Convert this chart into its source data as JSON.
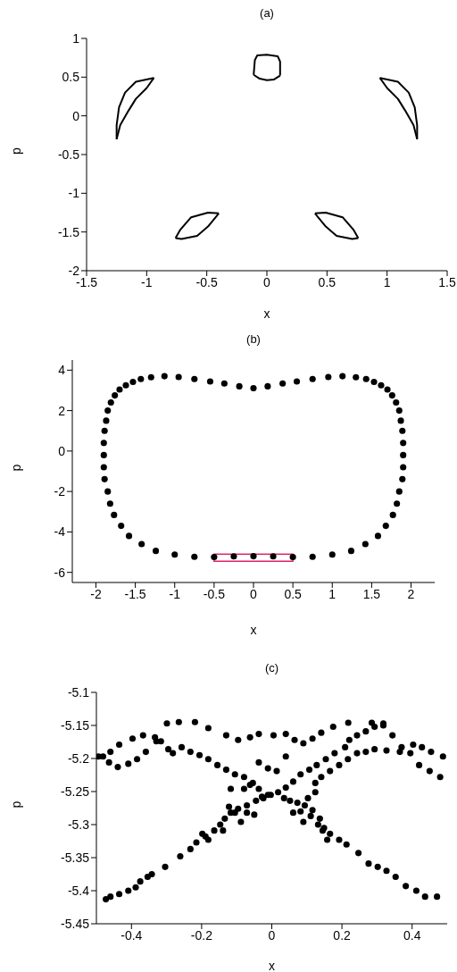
{
  "chart_data": [
    {
      "type": "line",
      "title": "(a)",
      "xlabel": "x",
      "ylabel": "p",
      "xlim": [
        -1.5,
        1.5
      ],
      "ylim": [
        -2,
        1
      ],
      "xticks": [
        -1.5,
        -1,
        -0.5,
        0,
        0.5,
        1,
        1.5
      ],
      "yticks": [
        -2,
        -1.5,
        -1,
        -0.5,
        0,
        0.5,
        1
      ],
      "marker": "none",
      "line_style": "solid",
      "series": [
        {
          "color": "#000000",
          "x": [
            -0.11,
            -0.1,
            -0.08,
            0,
            0.09,
            0.11,
            0.11
          ],
          "values": [
            0.53,
            0.72,
            0.78,
            0.79,
            0.77,
            0.7,
            0.52
          ]
        },
        {
          "color": "#000000",
          "x": [
            -0.11,
            -0.06,
            0,
            0.06,
            0.11
          ],
          "values": [
            0.53,
            0.48,
            0.46,
            0.47,
            0.52
          ]
        },
        {
          "color": "#000000",
          "x": [
            -1.25,
            -1.25,
            -1.23,
            -1.18,
            -1.09,
            -0.94
          ],
          "values": [
            -0.3,
            -0.12,
            0.11,
            0.3,
            0.44,
            0.49
          ]
        },
        {
          "color": "#000000",
          "x": [
            -1.25,
            -1.22,
            -1.15,
            -1.09,
            -1.0,
            -0.94
          ],
          "values": [
            -0.3,
            -0.12,
            0.07,
            0.22,
            0.36,
            0.49
          ]
        },
        {
          "color": "#000000",
          "x": [
            0.94,
            1.09,
            1.18,
            1.23,
            1.25,
            1.25
          ],
          "values": [
            0.49,
            0.44,
            0.3,
            0.11,
            -0.12,
            -0.3
          ]
        },
        {
          "color": "#000000",
          "x": [
            0.94,
            1.0,
            1.09,
            1.15,
            1.22,
            1.25
          ],
          "values": [
            0.49,
            0.36,
            0.22,
            0.07,
            -0.12,
            -0.3
          ]
        },
        {
          "color": "#000000",
          "x": [
            -0.76,
            -0.72,
            -0.63,
            -0.49,
            -0.4
          ],
          "values": [
            -1.58,
            -1.47,
            -1.31,
            -1.25,
            -1.26
          ]
        },
        {
          "color": "#000000",
          "x": [
            -0.76,
            -0.71,
            -0.58,
            -0.49,
            -0.4
          ],
          "values": [
            -1.58,
            -1.59,
            -1.55,
            -1.43,
            -1.26
          ]
        },
        {
          "color": "#000000",
          "x": [
            0.4,
            0.49,
            0.63,
            0.72,
            0.76
          ],
          "values": [
            -1.26,
            -1.25,
            -1.31,
            -1.47,
            -1.58
          ]
        },
        {
          "color": "#000000",
          "x": [
            0.4,
            0.49,
            0.58,
            0.71,
            0.76
          ],
          "values": [
            -1.26,
            -1.43,
            -1.55,
            -1.59,
            -1.58
          ]
        }
      ]
    },
    {
      "type": "scatter",
      "title": "(b)",
      "xlabel": "x",
      "ylabel": "p",
      "xlim": [
        -2.3,
        2.3
      ],
      "ylim": [
        -6.5,
        4.5
      ],
      "xticks": [
        -2,
        -1.5,
        -1,
        -0.5,
        0,
        0.5,
        1,
        1.5,
        2
      ],
      "yticks": [
        -6,
        -4,
        -2,
        0,
        2,
        4
      ],
      "marker": "circle",
      "series": [
        {
          "color": "#000000",
          "x": [
            -1.9,
            -1.89,
            -1.87,
            -1.85,
            -1.81,
            -1.76,
            -1.7,
            -1.62,
            -1.53,
            -1.43,
            -1.3,
            -1.13,
            -0.95,
            -0.75,
            -0.55,
            -0.37,
            -0.18,
            0,
            0.18,
            0.37,
            0.55,
            0.75,
            0.95,
            1.13,
            1.3,
            1.43,
            1.53,
            1.62,
            1.7,
            1.76,
            1.81,
            1.85,
            1.87,
            1.89,
            1.9,
            -1.9,
            -1.9,
            -1.89,
            -1.85,
            -1.82,
            -1.77,
            -1.68,
            -1.58,
            -1.42,
            -1.24,
            -1.0,
            -0.75,
            -0.5,
            -0.25,
            0,
            0.25,
            0.5,
            0.75,
            1.0,
            1.24,
            1.42,
            1.58,
            1.68,
            1.77,
            1.82,
            1.85,
            1.89,
            1.9,
            1.9
          ],
          "values": [
            0.4,
            1.0,
            1.5,
            2.0,
            2.4,
            2.75,
            3.04,
            3.25,
            3.42,
            3.56,
            3.65,
            3.7,
            3.66,
            3.56,
            3.44,
            3.34,
            3.2,
            3.11,
            3.2,
            3.34,
            3.44,
            3.56,
            3.66,
            3.7,
            3.65,
            3.56,
            3.42,
            3.25,
            3.04,
            2.75,
            2.4,
            2.0,
            1.5,
            1.0,
            0.4,
            -0.2,
            -0.8,
            -1.39,
            -2.0,
            -2.6,
            -3.16,
            -3.7,
            -4.2,
            -4.6,
            -4.94,
            -5.12,
            -5.23,
            -5.24,
            -5.21,
            -5.2,
            -5.21,
            -5.24,
            -5.23,
            -5.12,
            -4.94,
            -4.6,
            -4.2,
            -3.7,
            -3.16,
            -2.6,
            -2.0,
            -1.39,
            -0.8,
            -0.2
          ]
        }
      ]
    },
    {
      "type": "scatter",
      "title": "(c)",
      "xlabel": "x",
      "ylabel": "p",
      "xlim": [
        -0.5,
        0.5
      ],
      "ylim": [
        -5.45,
        -5.1
      ],
      "xticks": [
        -0.4,
        -0.2,
        0,
        0.2,
        0.4
      ],
      "yticks": [
        -5.45,
        -5.4,
        -5.35,
        -5.3,
        -5.25,
        -5.2,
        -5.15,
        -5.1
      ],
      "marker": "circle",
      "series": [
        {
          "color": "#000000",
          "x": [
            -0.473,
            -0.46,
            -0.435,
            -0.409,
            -0.388,
            -0.375,
            -0.354,
            -0.342,
            -0.304,
            -0.261,
            -0.232,
            -0.215,
            -0.189,
            -0.164,
            -0.147,
            -0.134,
            -0.117,
            -0.096,
            -0.071,
            -0.045,
            -0.024,
            -0.003,
            0.018,
            0.04,
            0.061,
            0.082,
            0.107,
            0.128,
            0.154,
            0.179,
            0.209,
            0.221,
            0.243,
            0.268,
            0.293,
            0.318,
            0.471,
            0.437,
            0.412,
            0.382,
            0.353,
            0.327,
            0.302,
            0.276,
            0.247,
            0.213,
            0.192,
            0.166,
            0.149,
            0.137,
            0.116,
            0.094,
            0.073,
            0.052,
            0.035,
            -0.011,
            -0.037,
            -0.062,
            -0.079,
            -0.105,
            -0.13,
            -0.155,
            -0.181,
            -0.206,
            -0.232,
            -0.257,
            -0.282,
            -0.295,
            -0.316,
            -0.333,
            -0.367,
            -0.397,
            -0.435,
            -0.46,
            -0.481,
            -0.494,
            -0.464,
            -0.439,
            -0.409,
            -0.384,
            -0.359,
            -0.329,
            -0.299,
            -0.265,
            -0.219,
            -0.181,
            -0.13,
            -0.096,
            -0.062,
            -0.037,
            0.005,
            0.04,
            0.065,
            0.09,
            0.116,
            0.141,
            0.175,
            0.218,
            0.285,
            0.318,
            0.344,
            0.37,
            0.403,
            0.428,
            0.454,
            0.488,
            0.48,
            0.45,
            0.42,
            0.395,
            0.365,
            0.327,
            0.293,
            0.268,
            0.243,
            0.217,
            0.192,
            0.166,
            0.141,
            0.124,
            0.124,
            0.103,
            -0.037,
            0.04,
            -0.011,
            0.014,
            -0.054,
            -0.028,
            -0.079,
            -0.117,
            -0.122,
            -0.105,
            -0.071,
            -0.05,
            0.061,
            0.082,
            0.111,
            0.09,
            0.132,
            0.145,
            0.158,
            -0.088,
            -0.139,
            -0.181,
            -0.198
          ],
          "values": [
            -5.413,
            -5.409,
            -5.405,
            -5.4,
            -5.395,
            -5.386,
            -5.379,
            -5.375,
            -5.364,
            -5.348,
            -5.337,
            -5.327,
            -5.318,
            -5.309,
            -5.3,
            -5.291,
            -5.282,
            -5.276,
            -5.271,
            -5.264,
            -5.26,
            -5.255,
            -5.251,
            -5.244,
            -5.235,
            -5.224,
            -5.217,
            -5.21,
            -5.201,
            -5.192,
            -5.183,
            -5.172,
            -5.165,
            -5.159,
            -5.152,
            -5.15,
            -5.409,
            -5.409,
            -5.4,
            -5.393,
            -5.379,
            -5.37,
            -5.364,
            -5.359,
            -5.343,
            -5.33,
            -5.323,
            -5.314,
            -5.305,
            -5.291,
            -5.278,
            -5.271,
            -5.267,
            -5.264,
            -5.26,
            -5.255,
            -5.246,
            -5.24,
            -5.228,
            -5.224,
            -5.217,
            -5.21,
            -5.201,
            -5.195,
            -5.19,
            -5.183,
            -5.192,
            -5.186,
            -5.174,
            -5.168,
            -5.165,
            -5.17,
            -5.179,
            -5.19,
            -5.197,
            -5.197,
            -5.206,
            -5.213,
            -5.208,
            -5.201,
            -5.19,
            -5.174,
            -5.147,
            -5.145,
            -5.145,
            -5.154,
            -5.165,
            -5.172,
            -5.168,
            -5.163,
            -5.165,
            -5.163,
            -5.172,
            -5.177,
            -5.17,
            -5.161,
            -5.152,
            -5.146,
            -5.146,
            -5.147,
            -5.165,
            -5.183,
            -5.179,
            -5.183,
            -5.19,
            -5.197,
            -5.228,
            -5.219,
            -5.21,
            -5.192,
            -5.19,
            -5.188,
            -5.186,
            -5.19,
            -5.192,
            -5.201,
            -5.21,
            -5.219,
            -5.228,
            -5.237,
            -5.251,
            -5.26,
            -5.206,
            -5.197,
            -5.215,
            -5.219,
            -5.237,
            -5.258,
            -5.246,
            -5.246,
            -5.273,
            -5.282,
            -5.282,
            -5.285,
            -5.282,
            -5.28,
            -5.287,
            -5.296,
            -5.3,
            -5.309,
            -5.323,
            -5.296,
            -5.309,
            -5.323,
            -5.314
          ]
        }
      ]
    }
  ]
}
